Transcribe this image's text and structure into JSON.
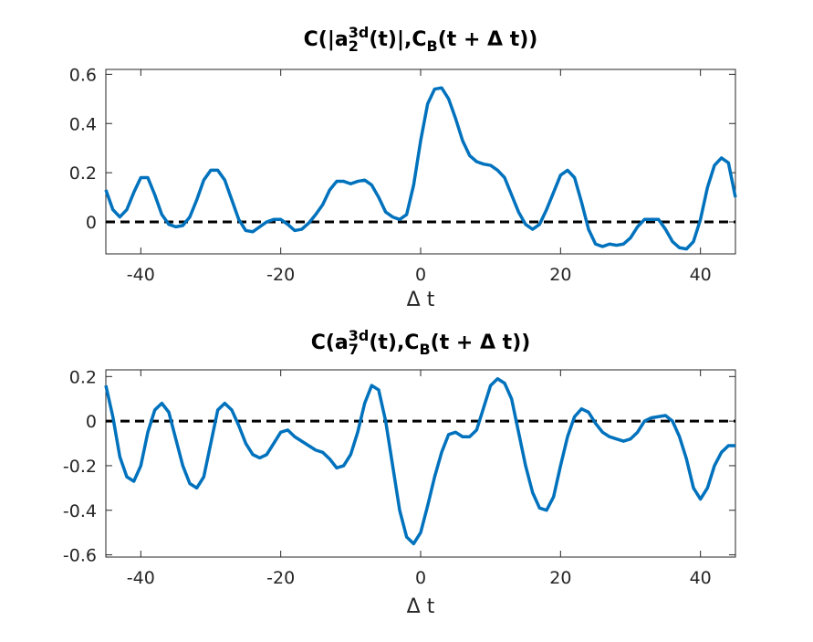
{
  "chart_data": [
    {
      "type": "line",
      "title": [
        "C(|a",
        {
          "sub": "2",
          "sup": "3d"
        },
        "(t)|,C",
        {
          "sub": "B"
        },
        "(t + Δ t))"
      ],
      "xlabel": "Δ t",
      "x": [
        -45,
        -44,
        -43,
        -42,
        -41,
        -40,
        -39,
        -38,
        -37,
        -36,
        -35,
        -34,
        -33,
        -32,
        -31,
        -30,
        -29,
        -28,
        -27,
        -26,
        -25,
        -24,
        -23,
        -22,
        -21,
        -20,
        -19,
        -18,
        -17,
        -16,
        -15,
        -14,
        -13,
        -12,
        -11,
        -10,
        -9,
        -8,
        -7,
        -6,
        -5,
        -4,
        -3,
        -2,
        -1,
        0,
        1,
        2,
        3,
        4,
        5,
        6,
        7,
        8,
        9,
        10,
        11,
        12,
        13,
        14,
        15,
        16,
        17,
        18,
        19,
        20,
        21,
        22,
        23,
        24,
        25,
        26,
        27,
        28,
        29,
        30,
        31,
        32,
        33,
        34,
        35,
        36,
        37,
        38,
        39,
        40,
        41,
        42,
        43,
        44,
        45
      ],
      "series": [
        {
          "color": "#0072bd",
          "values": [
            0.13,
            0.05,
            0.02,
            0.05,
            0.12,
            0.18,
            0.18,
            0.11,
            0.03,
            -0.01,
            -0.02,
            -0.015,
            0.02,
            0.09,
            0.17,
            0.21,
            0.21,
            0.17,
            0.09,
            0.01,
            -0.035,
            -0.04,
            -0.02,
            0.0,
            0.01,
            0.01,
            -0.01,
            -0.035,
            -0.03,
            -0.005,
            0.03,
            0.07,
            0.13,
            0.165,
            0.165,
            0.155,
            0.165,
            0.17,
            0.15,
            0.1,
            0.04,
            0.02,
            0.01,
            0.03,
            0.15,
            0.33,
            0.48,
            0.54,
            0.545,
            0.5,
            0.42,
            0.33,
            0.27,
            0.245,
            0.235,
            0.23,
            0.21,
            0.18,
            0.11,
            0.04,
            -0.01,
            -0.03,
            -0.01,
            0.05,
            0.12,
            0.19,
            0.21,
            0.18,
            0.08,
            -0.03,
            -0.09,
            -0.1,
            -0.09,
            -0.095,
            -0.09,
            -0.065,
            -0.02,
            0.01,
            0.01,
            0.01,
            -0.03,
            -0.08,
            -0.105,
            -0.11,
            -0.08,
            0.01,
            0.14,
            0.23,
            0.26,
            0.24,
            0.1
          ]
        }
      ],
      "xlim": [
        -45,
        45
      ],
      "xticks": [
        -40,
        -20,
        0,
        20,
        40
      ],
      "ylim": [
        -0.13,
        0.62
      ],
      "yticks": [
        0,
        0.2,
        0.4,
        0.6
      ],
      "hline": {
        "value": 0,
        "color": "#000000",
        "style": "dashed"
      }
    },
    {
      "type": "line",
      "title": [
        "C(a",
        {
          "sub": "7",
          "sup": "3d"
        },
        "(t),C",
        {
          "sub": "B"
        },
        "(t + Δ t))"
      ],
      "xlabel": "Δ t",
      "x": [
        -45,
        -44,
        -43,
        -42,
        -41,
        -40,
        -39,
        -38,
        -37,
        -36,
        -35,
        -34,
        -33,
        -32,
        -31,
        -30,
        -29,
        -28,
        -27,
        -26,
        -25,
        -24,
        -23,
        -22,
        -21,
        -20,
        -19,
        -18,
        -17,
        -16,
        -15,
        -14,
        -13,
        -12,
        -11,
        -10,
        -9,
        -8,
        -7,
        -6,
        -5,
        -4,
        -3,
        -2,
        -1,
        0,
        1,
        2,
        3,
        4,
        5,
        6,
        7,
        8,
        9,
        10,
        11,
        12,
        13,
        14,
        15,
        16,
        17,
        18,
        19,
        20,
        21,
        22,
        23,
        24,
        25,
        26,
        27,
        28,
        29,
        30,
        31,
        32,
        33,
        34,
        35,
        36,
        37,
        38,
        39,
        40,
        41,
        42,
        43,
        44,
        45
      ],
      "series": [
        {
          "color": "#0072bd",
          "values": [
            0.16,
            0.02,
            -0.16,
            -0.25,
            -0.27,
            -0.2,
            -0.05,
            0.05,
            0.08,
            0.04,
            -0.08,
            -0.2,
            -0.28,
            -0.3,
            -0.25,
            -0.1,
            0.05,
            0.08,
            0.05,
            -0.02,
            -0.1,
            -0.15,
            -0.165,
            -0.15,
            -0.1,
            -0.05,
            -0.04,
            -0.07,
            -0.09,
            -0.11,
            -0.13,
            -0.14,
            -0.17,
            -0.21,
            -0.2,
            -0.15,
            -0.05,
            0.08,
            0.16,
            0.14,
            0.0,
            -0.2,
            -0.4,
            -0.52,
            -0.55,
            -0.5,
            -0.38,
            -0.25,
            -0.14,
            -0.06,
            -0.05,
            -0.07,
            -0.07,
            -0.04,
            0.06,
            0.16,
            0.19,
            0.17,
            0.1,
            -0.05,
            -0.2,
            -0.32,
            -0.39,
            -0.4,
            -0.34,
            -0.2,
            -0.07,
            0.02,
            0.055,
            0.04,
            -0.01,
            -0.05,
            -0.07,
            -0.08,
            -0.09,
            -0.08,
            -0.05,
            0.0,
            0.015,
            0.02,
            0.025,
            0.0,
            -0.07,
            -0.17,
            -0.3,
            -0.35,
            -0.3,
            -0.2,
            -0.14,
            -0.11,
            -0.11
          ]
        }
      ],
      "xlim": [
        -45,
        45
      ],
      "xticks": [
        -40,
        -20,
        0,
        20,
        40
      ],
      "ylim": [
        -0.61,
        0.23
      ],
      "yticks": [
        -0.6,
        -0.4,
        -0.2,
        0,
        0.2
      ],
      "hline": {
        "value": 0,
        "color": "#000000",
        "style": "dashed"
      }
    }
  ]
}
